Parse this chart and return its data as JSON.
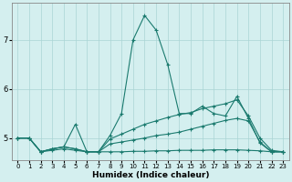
{
  "xlabel": "Humidex (Indice chaleur)",
  "bg_color": "#d4efef",
  "grid_color": "#aad4d4",
  "line_color": "#1a7a6e",
  "xlim": [
    -0.5,
    23.5
  ],
  "ylim": [
    4.55,
    7.75
  ],
  "yticks": [
    5,
    6,
    7
  ],
  "xticks": [
    0,
    1,
    2,
    3,
    4,
    5,
    6,
    7,
    8,
    9,
    10,
    11,
    12,
    13,
    14,
    15,
    16,
    17,
    18,
    19,
    20,
    21,
    22,
    23
  ],
  "lines": [
    {
      "x": [
        0,
        1,
        2,
        3,
        4,
        5,
        6,
        7,
        8,
        9,
        10,
        11,
        12,
        13,
        14,
        15,
        16,
        17,
        18,
        19,
        20,
        21,
        22,
        23
      ],
      "y": [
        5.0,
        5.0,
        4.72,
        4.78,
        4.82,
        5.28,
        4.72,
        4.72,
        5.05,
        5.5,
        7.0,
        7.5,
        7.2,
        6.5,
        5.5,
        5.5,
        5.65,
        5.5,
        5.45,
        5.85,
        5.4,
        4.9,
        4.72,
        4.72
      ]
    },
    {
      "x": [
        0,
        1,
        2,
        3,
        4,
        5,
        6,
        7,
        8,
        9,
        10,
        11,
        12,
        13,
        14,
        15,
        16,
        17,
        18,
        19,
        20,
        21,
        22,
        23
      ],
      "y": [
        5.0,
        5.0,
        4.72,
        4.78,
        4.82,
        4.78,
        4.72,
        4.72,
        4.98,
        5.08,
        5.18,
        5.28,
        5.35,
        5.42,
        5.48,
        5.52,
        5.6,
        5.65,
        5.7,
        5.78,
        5.45,
        5.0,
        4.75,
        4.72
      ]
    },
    {
      "x": [
        0,
        1,
        2,
        3,
        4,
        5,
        6,
        7,
        8,
        9,
        10,
        11,
        12,
        13,
        14,
        15,
        16,
        17,
        18,
        19,
        20,
        21,
        22,
        23
      ],
      "y": [
        5.0,
        5.0,
        4.72,
        4.78,
        4.82,
        4.78,
        4.72,
        4.72,
        4.88,
        4.92,
        4.96,
        5.0,
        5.05,
        5.08,
        5.12,
        5.18,
        5.24,
        5.3,
        5.36,
        5.4,
        5.35,
        4.92,
        4.72,
        4.72
      ]
    },
    {
      "x": [
        0,
        1,
        2,
        3,
        4,
        5,
        6,
        7,
        8,
        9,
        10,
        11,
        12,
        13,
        14,
        15,
        16,
        17,
        18,
        19,
        20,
        21,
        22,
        23
      ],
      "y": [
        5.0,
        5.0,
        4.72,
        4.75,
        4.78,
        4.75,
        4.72,
        4.72,
        4.72,
        4.72,
        4.73,
        4.73,
        4.74,
        4.74,
        4.75,
        4.75,
        4.75,
        4.76,
        4.76,
        4.76,
        4.75,
        4.74,
        4.72,
        4.72
      ]
    }
  ]
}
